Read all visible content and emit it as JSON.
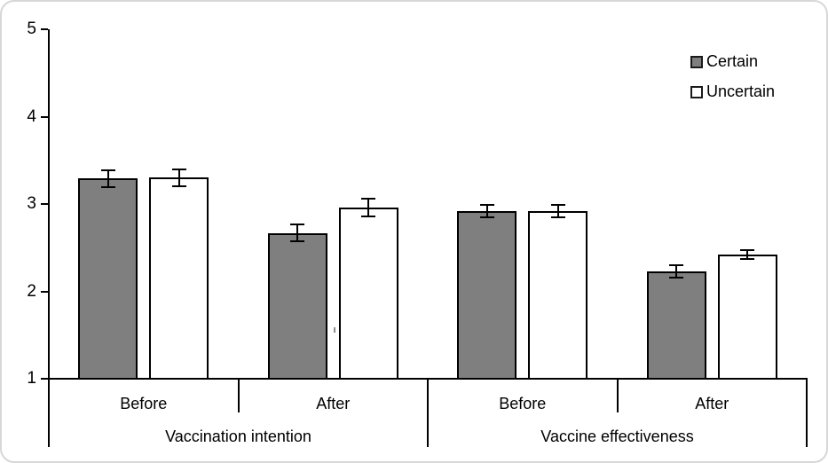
{
  "chart_data": {
    "type": "bar",
    "panels": [
      "Vaccination intention",
      "Vaccine effectiveness"
    ],
    "categories": [
      "Before",
      "After",
      "Before",
      "After"
    ],
    "category_panel": [
      0,
      0,
      1,
      1
    ],
    "series": [
      {
        "name": "Certain",
        "fill": "#7f7f7f",
        "values": [
          3.29,
          2.67,
          2.92,
          2.23
        ],
        "errors": [
          0.11,
          0.11,
          0.08,
          0.08
        ]
      },
      {
        "name": "Uncertain",
        "fill": "#ffffff",
        "values": [
          3.3,
          2.96,
          2.92,
          2.42
        ],
        "errors": [
          0.11,
          0.11,
          0.08,
          0.06
        ]
      }
    ],
    "y_ticks": [
      "1",
      "2",
      "3",
      "4",
      "5"
    ],
    "ylim": [
      1,
      5
    ],
    "xlabel": "",
    "ylabel": "",
    "title": "",
    "grid": false,
    "legend_position": "top-right",
    "error_bar_color": "#000000",
    "bar_border_color": "#000000",
    "axis_color": "#000000"
  }
}
